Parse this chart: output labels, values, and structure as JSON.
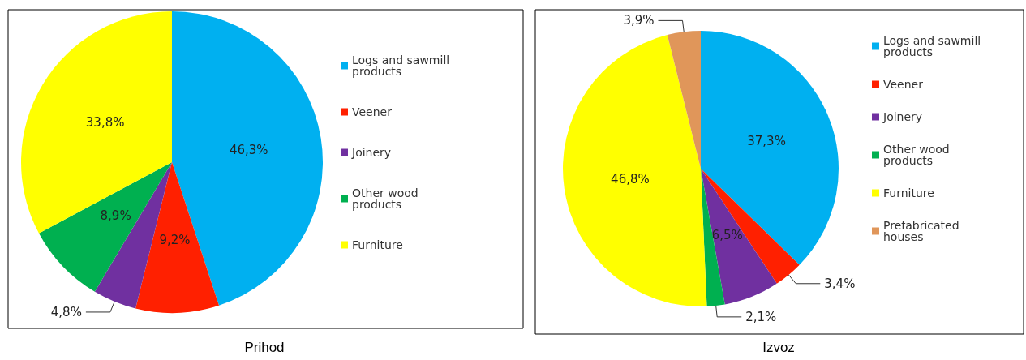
{
  "chart_data": [
    {
      "type": "pie",
      "title": "Prihod",
      "categories": [
        "Logs and sawmill products",
        "Veener",
        "Joinery",
        "Other wood products",
        "Furniture"
      ],
      "values": [
        46.3,
        9.2,
        4.8,
        8.9,
        33.8
      ],
      "value_labels": [
        "46,3%",
        "9,2%",
        "4,8%",
        "8,9%",
        "33,8%"
      ],
      "colors": [
        "#00b0f0",
        "#ff2000",
        "#7030a0",
        "#00b050",
        "#ffff00"
      ],
      "legend": "right"
    },
    {
      "type": "pie",
      "title": "Izvoz",
      "categories": [
        "Logs and sawmill products",
        "Veener",
        "Joinery",
        "Other wood products",
        "Furniture",
        "Prefabricated houses"
      ],
      "values": [
        37.3,
        3.4,
        6.5,
        2.1,
        46.8,
        3.9
      ],
      "value_labels": [
        "37,3%",
        "3,4%",
        "6,5%",
        "2,1%",
        "46,8%",
        "3,9%"
      ],
      "colors": [
        "#00b0f0",
        "#ff2000",
        "#7030a0",
        "#00b050",
        "#ffff00",
        "#e0965a"
      ],
      "legend": "right"
    }
  ]
}
